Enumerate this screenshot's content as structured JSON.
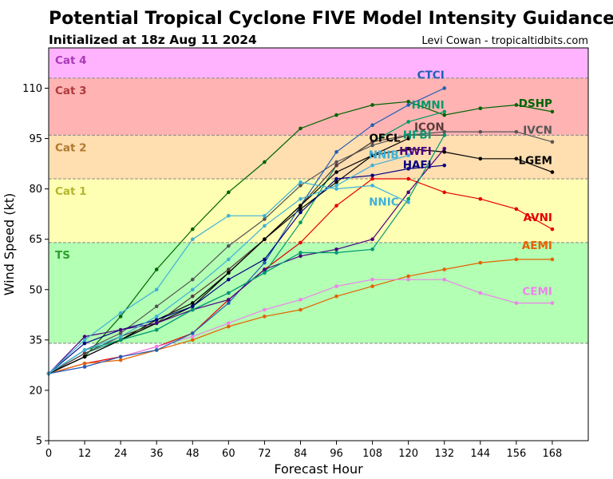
{
  "title": "Potential Tropical Cyclone FIVE Model Intensity Guidance",
  "subtitle": "Initialized at 18z Aug 11 2024",
  "credit": "Levi Cowan - tropicaltidbits.com",
  "chart_data": {
    "type": "line",
    "xlabel": "Forecast Hour",
    "ylabel": "Wind Speed (kt)",
    "xlim": [
      0,
      180
    ],
    "ylim": [
      5,
      122
    ],
    "xticks": [
      0,
      12,
      24,
      36,
      48,
      60,
      72,
      84,
      96,
      108,
      120,
      132,
      144,
      156,
      168
    ],
    "yticks": [
      5,
      20,
      35,
      50,
      65,
      80,
      95,
      110
    ],
    "grid": false,
    "intensity_bands": [
      {
        "name": "TS",
        "from": 34,
        "to": 64,
        "color": "#b3ffb3",
        "label_color": "#2ca02c"
      },
      {
        "name": "Cat 1",
        "from": 64,
        "to": 83,
        "color": "#ffffb3",
        "label_color": "#b5b52e"
      },
      {
        "name": "Cat 2",
        "from": 83,
        "to": 96,
        "color": "#ffdeb0",
        "label_color": "#b07a30"
      },
      {
        "name": "Cat 3",
        "from": 96,
        "to": 113,
        "color": "#ffb3b3",
        "label_color": "#b03a3a"
      },
      {
        "name": "Cat 4",
        "from": 113,
        "to": 122,
        "color": "#ffb3ff",
        "label_color": "#a93ab8"
      }
    ],
    "series": [
      {
        "name": "DSHP",
        "color": "#006400",
        "x": [
          0,
          12,
          24,
          36,
          48,
          60,
          72,
          84,
          96,
          108,
          120,
          132,
          144,
          156,
          168
        ],
        "y": [
          25,
          30,
          42,
          56,
          68,
          79,
          88,
          98,
          102,
          105,
          106,
          102,
          104,
          105,
          103
        ]
      },
      {
        "name": "LGEM",
        "color": "#000000",
        "x": [
          0,
          12,
          24,
          36,
          48,
          60,
          72,
          84,
          96,
          108,
          120,
          132,
          144,
          156,
          168
        ],
        "y": [
          25,
          30,
          35,
          41,
          46,
          55,
          65,
          74,
          82,
          90,
          92,
          91,
          89,
          89,
          85
        ]
      },
      {
        "name": "IVCN",
        "color": "#555555",
        "x": [
          0,
          12,
          24,
          36,
          48,
          60,
          72,
          84,
          96,
          108,
          120,
          132,
          144,
          156,
          168
        ],
        "y": [
          25,
          32,
          37,
          45,
          53,
          63,
          71,
          81,
          88,
          93,
          96,
          97,
          97,
          97,
          94
        ]
      },
      {
        "name": "AVNI",
        "color": "#e60000",
        "x": [
          0,
          12,
          24,
          36,
          48,
          60,
          72,
          84,
          96,
          108,
          120,
          132,
          144,
          156,
          168
        ],
        "y": [
          25,
          28,
          30,
          33,
          37,
          47,
          56,
          64,
          75,
          83,
          83,
          79,
          77,
          74,
          68
        ]
      },
      {
        "name": "AEMI",
        "color": "#e66100",
        "x": [
          0,
          12,
          24,
          36,
          48,
          60,
          72,
          84,
          96,
          108,
          120,
          132,
          144,
          156,
          168
        ],
        "y": [
          25,
          28,
          29,
          32,
          35,
          39,
          42,
          44,
          48,
          51,
          54,
          56,
          58,
          59,
          59
        ]
      },
      {
        "name": "CEMI",
        "color": "#ee82ee",
        "x": [
          0,
          12,
          24,
          36,
          48,
          60,
          72,
          84,
          96,
          108,
          120,
          132,
          144,
          156,
          168
        ],
        "y": [
          25,
          27,
          30,
          33,
          36,
          40,
          44,
          47,
          51,
          53,
          53,
          53,
          49,
          46,
          46
        ]
      },
      {
        "name": "CTCI",
        "color": "#1f5fb4",
        "x": [
          0,
          12,
          24,
          36,
          48,
          60,
          72,
          84,
          96,
          108,
          120,
          132
        ],
        "y": [
          25,
          27,
          30,
          32,
          37,
          46,
          58,
          75,
          91,
          99,
          105,
          110
        ]
      },
      {
        "name": "HMNI",
        "color": "#009966",
        "x": [
          0,
          12,
          24,
          36,
          48,
          60,
          72,
          84,
          96,
          108,
          120,
          132
        ],
        "y": [
          25,
          31,
          35,
          38,
          44,
          49,
          55,
          70,
          87,
          94,
          100,
          103
        ]
      },
      {
        "name": "ICON",
        "color": "#5a3a3a",
        "x": [
          0,
          12,
          24,
          36,
          48,
          60,
          72,
          84,
          96,
          108,
          120,
          132
        ],
        "y": [
          25,
          31,
          36,
          40,
          48,
          56,
          65,
          75,
          87,
          94,
          96,
          96
        ]
      },
      {
        "name": "OFCL",
        "color": "#000000",
        "x": [
          0,
          12,
          24,
          36,
          48,
          60,
          72,
          84,
          96,
          108,
          120
        ],
        "y": [
          25,
          30,
          35,
          40,
          45,
          55,
          65,
          75,
          85,
          90,
          95
        ]
      },
      {
        "name": "HAFI",
        "color": "#000080",
        "x": [
          0,
          12,
          24,
          36,
          48,
          60,
          72,
          84,
          96,
          108,
          120,
          132
        ],
        "y": [
          25,
          34,
          38,
          41,
          45,
          53,
          59,
          73,
          83,
          84,
          86,
          87
        ]
      },
      {
        "name": "HWFI",
        "color": "#4b0082",
        "x": [
          0,
          12,
          24,
          36,
          48,
          60,
          72,
          84,
          96,
          108,
          120,
          132
        ],
        "y": [
          25,
          36,
          38,
          40,
          44,
          47,
          56,
          60,
          62,
          65,
          79,
          92
        ]
      },
      {
        "name": "HFBI",
        "color": "#009973",
        "x": [
          0,
          12,
          24,
          36,
          48,
          60,
          72,
          84,
          96,
          108,
          120,
          132
        ],
        "y": [
          25,
          32,
          35,
          38,
          44,
          49,
          55,
          61,
          61,
          62,
          77,
          96
        ]
      },
      {
        "name": "NNIB",
        "color": "#3fb0d8",
        "x": [
          0,
          12,
          24,
          36,
          48,
          60,
          72,
          84,
          96,
          108,
          120
        ],
        "y": [
          25,
          32,
          36,
          42,
          50,
          59,
          69,
          77,
          81,
          87,
          90
        ]
      },
      {
        "name": "NNIC",
        "color": "#3fb0d8",
        "x": [
          0,
          12,
          24,
          36,
          48,
          60,
          72,
          84,
          96,
          108,
          120
        ],
        "y": [
          25,
          35,
          43,
          50,
          65,
          72,
          72,
          82,
          80,
          81,
          76
        ]
      }
    ]
  }
}
